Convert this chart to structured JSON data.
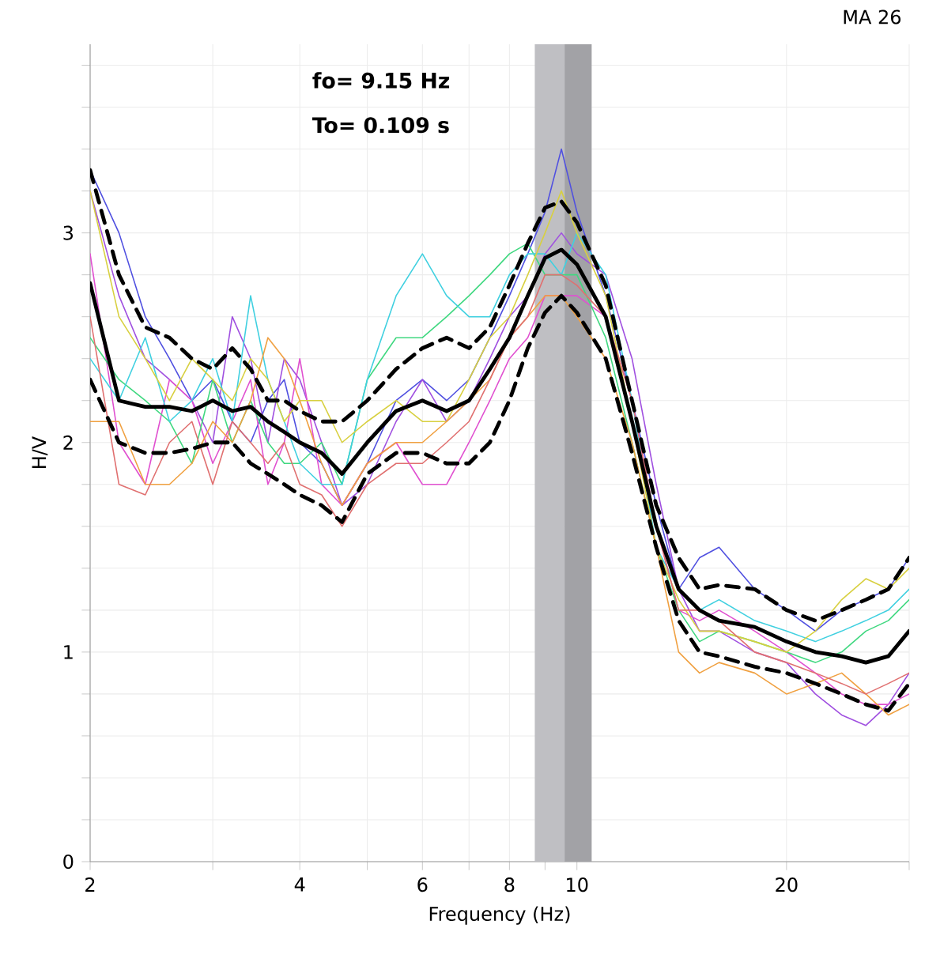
{
  "chart_data": {
    "type": "line",
    "title": "MA 26",
    "xlabel": "Frequency (Hz)",
    "ylabel": "H/V",
    "annotations": [
      "fo= 9.15 Hz",
      "To= 0.109 s"
    ],
    "log": "x",
    "grid": true,
    "marker": "none",
    "xlim": [
      2,
      30
    ],
    "ylim": [
      0,
      3.9
    ],
    "xticks": [
      2,
      {
        "value": 3,
        "label": null
      },
      4,
      {
        "value": 5,
        "label": null
      },
      6,
      {
        "value": 7,
        "label": null
      },
      8,
      {
        "value": 9,
        "label": null
      },
      10,
      20,
      {
        "value": 30,
        "label": null
      }
    ],
    "yticks": [
      0,
      {
        "value": 0.2,
        "label": null
      },
      {
        "value": 0.4,
        "label": null
      },
      {
        "value": 0.6,
        "label": null
      },
      {
        "value": 0.8,
        "label": null
      },
      1,
      {
        "value": 1.2,
        "label": null
      },
      {
        "value": 1.4,
        "label": null
      },
      {
        "value": 1.6,
        "label": null
      },
      {
        "value": 1.8,
        "label": null
      },
      2,
      {
        "value": 2.2,
        "label": null
      },
      {
        "value": 2.4,
        "label": null
      },
      {
        "value": 2.6,
        "label": null
      },
      {
        "value": 2.8,
        "label": null
      },
      3,
      {
        "value": 3.2,
        "label": null
      },
      {
        "value": 3.4,
        "label": null
      },
      {
        "value": 3.6,
        "label": null
      },
      {
        "value": 3.8,
        "label": null
      }
    ],
    "bands": [
      {
        "axis": "x",
        "from": 8.7,
        "to": 9.6,
        "color": "#bfbfc3"
      },
      {
        "axis": "x",
        "from": 9.6,
        "to": 10.5,
        "color": "#a2a2a6"
      }
    ],
    "x": [
      2,
      2.2,
      2.4,
      2.6,
      2.8,
      3,
      3.2,
      3.4,
      3.6,
      3.8,
      4,
      4.3,
      4.6,
      5,
      5.5,
      6,
      6.5,
      7,
      7.5,
      8,
      8.5,
      9,
      9.5,
      10,
      11,
      12,
      13,
      14,
      15,
      16,
      18,
      20,
      22,
      24,
      26,
      28,
      30
    ],
    "series": [
      {
        "color": "#5050e0",
        "line_style": "solid",
        "values": [
          3.3,
          3.0,
          2.6,
          2.4,
          2.2,
          2.3,
          2.1,
          2.0,
          2.2,
          2.3,
          2.0,
          1.9,
          1.7,
          1.9,
          2.2,
          2.3,
          2.2,
          2.3,
          2.5,
          2.7,
          2.9,
          3.1,
          3.4,
          3.1,
          2.7,
          2.2,
          1.7,
          1.3,
          1.45,
          1.5,
          1.3,
          1.2,
          1.1,
          1.2,
          1.25,
          1.3,
          1.45
        ]
      },
      {
        "color": "#a050e0",
        "line_style": "solid",
        "values": [
          3.2,
          2.7,
          2.4,
          2.3,
          2.2,
          2.0,
          2.6,
          2.4,
          2.0,
          2.4,
          2.3,
          2.0,
          1.7,
          1.8,
          2.1,
          2.3,
          2.1,
          2.2,
          2.4,
          2.6,
          2.7,
          2.9,
          3.0,
          2.9,
          2.8,
          2.4,
          1.8,
          1.3,
          1.1,
          1.1,
          1.0,
          0.95,
          0.8,
          0.7,
          0.65,
          0.75,
          0.9
        ]
      },
      {
        "color": "#e050d0",
        "line_style": "solid",
        "values": [
          2.9,
          2.0,
          1.8,
          2.3,
          2.2,
          1.9,
          2.1,
          2.3,
          1.8,
          2.0,
          2.4,
          1.8,
          1.7,
          1.9,
          2.0,
          1.8,
          1.8,
          2.0,
          2.2,
          2.4,
          2.5,
          2.7,
          2.7,
          2.7,
          2.6,
          2.2,
          1.6,
          1.2,
          1.15,
          1.2,
          1.1,
          1.0,
          0.9,
          0.8,
          0.75,
          0.75,
          0.8
        ]
      },
      {
        "color": "#40d880",
        "line_style": "solid",
        "values": [
          2.5,
          2.3,
          2.2,
          2.1,
          1.9,
          2.3,
          2.0,
          2.2,
          2.0,
          1.9,
          1.9,
          2.0,
          1.8,
          2.3,
          2.5,
          2.5,
          2.6,
          2.7,
          2.8,
          2.9,
          2.95,
          2.8,
          2.8,
          2.8,
          2.5,
          2.0,
          1.5,
          1.2,
          1.05,
          1.1,
          1.05,
          1.0,
          0.95,
          1.0,
          1.1,
          1.15,
          1.25
        ]
      },
      {
        "color": "#40d0e0",
        "line_style": "solid",
        "values": [
          2.4,
          2.2,
          2.5,
          2.1,
          2.2,
          2.4,
          2.1,
          2.7,
          2.3,
          2.1,
          1.9,
          1.8,
          1.8,
          2.3,
          2.7,
          2.9,
          2.7,
          2.6,
          2.6,
          2.8,
          2.9,
          2.9,
          2.8,
          3.0,
          2.8,
          2.2,
          1.5,
          1.3,
          1.2,
          1.25,
          1.15,
          1.1,
          1.05,
          1.1,
          1.15,
          1.2,
          1.3
        ]
      },
      {
        "color": "#d8d040",
        "line_style": "solid",
        "values": [
          3.2,
          2.6,
          2.4,
          2.2,
          2.4,
          2.3,
          2.2,
          2.4,
          2.3,
          2.1,
          2.2,
          2.2,
          2.0,
          2.1,
          2.2,
          2.1,
          2.1,
          2.3,
          2.5,
          2.6,
          2.8,
          3.0,
          3.2,
          3.0,
          2.7,
          2.1,
          1.5,
          1.25,
          1.1,
          1.1,
          1.05,
          1.0,
          1.1,
          1.25,
          1.35,
          1.3,
          1.4
        ]
      },
      {
        "color": "#f0a040",
        "line_style": "solid",
        "values": [
          2.1,
          2.1,
          1.8,
          1.8,
          1.9,
          2.1,
          2.0,
          2.2,
          2.5,
          2.4,
          2.2,
          1.9,
          1.7,
          1.9,
          2.0,
          2.0,
          2.1,
          2.2,
          2.3,
          2.5,
          2.6,
          2.7,
          2.7,
          2.6,
          2.4,
          2.0,
          1.5,
          1.0,
          0.9,
          0.95,
          0.9,
          0.8,
          0.85,
          0.9,
          0.8,
          0.7,
          0.75
        ]
      },
      {
        "color": "#e07070",
        "line_style": "solid",
        "values": [
          2.6,
          1.8,
          1.75,
          2.0,
          2.1,
          1.8,
          2.1,
          2.0,
          1.9,
          2.0,
          1.8,
          1.75,
          1.6,
          1.8,
          1.9,
          1.9,
          2.0,
          2.1,
          2.3,
          2.5,
          2.6,
          2.8,
          2.8,
          2.75,
          2.6,
          2.2,
          1.6,
          1.2,
          1.2,
          1.15,
          1.0,
          0.95,
          0.9,
          0.85,
          0.8,
          0.85,
          0.9
        ]
      },
      {
        "color": "#000000",
        "line_style": "dashed",
        "values": [
          3.3,
          2.8,
          2.55,
          2.5,
          2.4,
          2.35,
          2.45,
          2.35,
          2.2,
          2.2,
          2.15,
          2.1,
          2.1,
          2.2,
          2.35,
          2.45,
          2.5,
          2.45,
          2.55,
          2.75,
          2.95,
          3.12,
          3.15,
          3.05,
          2.75,
          2.2,
          1.7,
          1.45,
          1.3,
          1.32,
          1.3,
          1.2,
          1.15,
          1.2,
          1.25,
          1.3,
          1.45
        ]
      },
      {
        "color": "#000000",
        "line_style": "dashed",
        "values": [
          2.3,
          2.0,
          1.95,
          1.95,
          1.97,
          2.0,
          2.0,
          1.9,
          1.85,
          1.8,
          1.75,
          1.7,
          1.62,
          1.85,
          1.95,
          1.95,
          1.9,
          1.9,
          2.0,
          2.2,
          2.45,
          2.62,
          2.7,
          2.62,
          2.4,
          1.95,
          1.5,
          1.15,
          1.0,
          0.98,
          0.93,
          0.9,
          0.85,
          0.8,
          0.75,
          0.72,
          0.85
        ]
      },
      {
        "color": "#000000",
        "line_style": "solid",
        "values": [
          2.76,
          2.2,
          2.17,
          2.17,
          2.15,
          2.2,
          2.15,
          2.17,
          2.1,
          2.05,
          2.0,
          1.95,
          1.85,
          2.0,
          2.15,
          2.2,
          2.15,
          2.2,
          2.35,
          2.5,
          2.7,
          2.88,
          2.92,
          2.85,
          2.6,
          2.1,
          1.6,
          1.3,
          1.2,
          1.15,
          1.12,
          1.05,
          1.0,
          0.98,
          0.95,
          0.98,
          1.1
        ]
      }
    ]
  }
}
